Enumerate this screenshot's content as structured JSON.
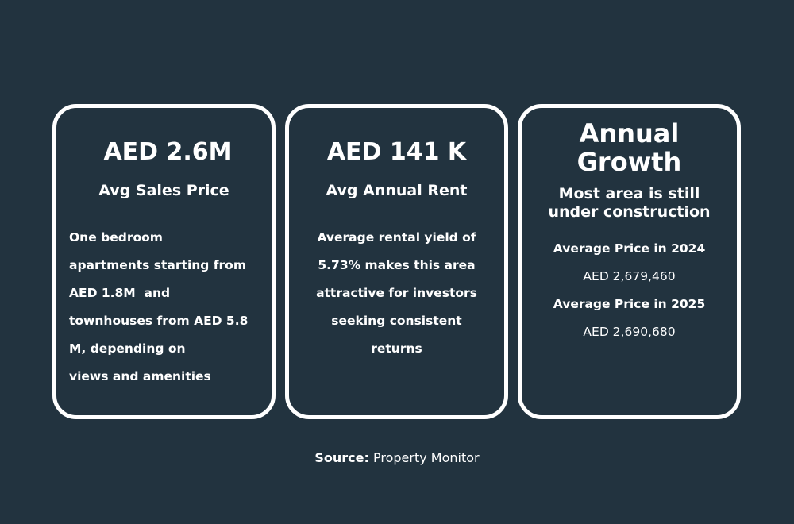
{
  "cards": [
    {
      "headline": "AED 2.6M",
      "subtitle": "Avg Sales Price",
      "lines": [
        "One bedroom",
        "apartments starting from",
        "AED 1.8M  and",
        "townhouses from AED 5.8",
        "M, depending on",
        "views and amenities"
      ]
    },
    {
      "headline": "AED 141 K",
      "subtitle": "Avg Annual Rent",
      "lines": [
        "Average rental yield of",
        "5.73% makes this area",
        "attractive for investors",
        "seeking consistent",
        "returns"
      ]
    },
    {
      "headline_lines": [
        "Annual",
        "Growth"
      ],
      "subtitle_lines": [
        "Most area is still",
        "under construction"
      ],
      "price_2024_label": "Average Price in 2024",
      "price_2024_value": "AED 2,679,460",
      "price_2025_label": "Average Price in 2025",
      "price_2025_value": "AED 2,690,680"
    }
  ],
  "source": {
    "label": "Source:",
    "value": "Property Monitor"
  },
  "colors": {
    "background": "#22333f",
    "border": "#ffffff",
    "text": "#ffffff"
  }
}
